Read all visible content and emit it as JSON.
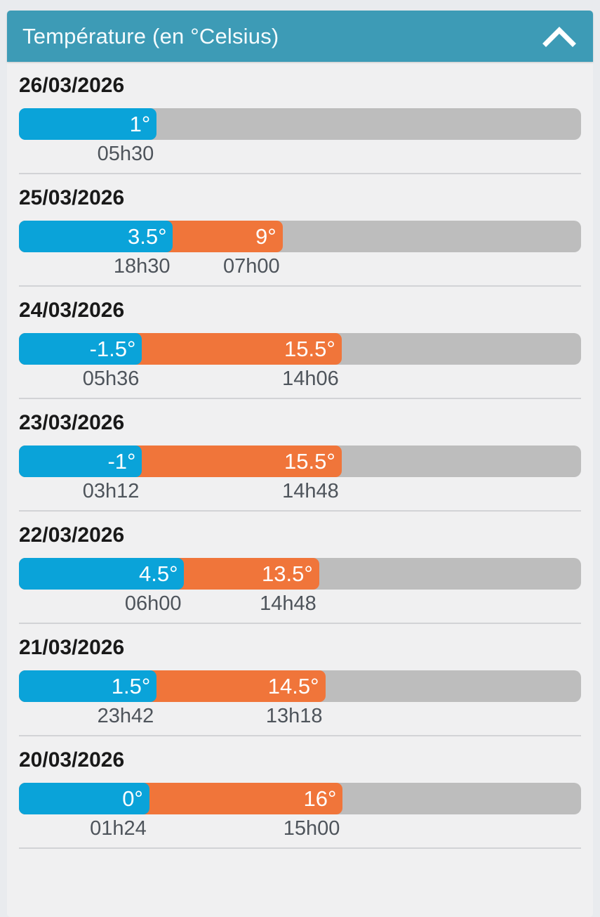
{
  "header": {
    "title": "Température (en °Celsius)",
    "collapse_icon": "chevron-up-icon"
  },
  "colors": {
    "page_background": "#e9ebee",
    "card_background": "#f0f0f1",
    "header_background": "#3d9bb6",
    "min_bar": "#0aa3d9",
    "max_bar": "#f0753a",
    "track": "#bdbdbd",
    "divider": "#d2d3d6"
  },
  "chart_data": {
    "type": "bar",
    "title": "Température (en °Celsius)",
    "unit": "°C",
    "orientation": "horizontal",
    "legend": {
      "min_color": "#0aa3d9",
      "max_color": "#f0753a"
    },
    "days": [
      {
        "date": "26/03/2026",
        "min": {
          "label": "1°",
          "value": 1,
          "time": "05h30",
          "end_pct": 24.5
        },
        "max": null
      },
      {
        "date": "25/03/2026",
        "min": {
          "label": "3.5°",
          "value": 3.5,
          "time": "18h30",
          "end_pct": 27.4
        },
        "max": {
          "label": "9°",
          "value": 9,
          "time": "07h00",
          "end_pct": 46.9
        }
      },
      {
        "date": "24/03/2026",
        "min": {
          "label": "-1.5°",
          "value": -1.5,
          "time": "05h36",
          "end_pct": 21.9
        },
        "max": {
          "label": "15.5°",
          "value": 15.5,
          "time": "14h06",
          "end_pct": 57.4
        }
      },
      {
        "date": "23/03/2026",
        "min": {
          "label": "-1°",
          "value": -1,
          "time": "03h12",
          "end_pct": 21.9
        },
        "max": {
          "label": "15.5°",
          "value": 15.5,
          "time": "14h48",
          "end_pct": 57.4
        }
      },
      {
        "date": "22/03/2026",
        "min": {
          "label": "4.5°",
          "value": 4.5,
          "time": "06h00",
          "end_pct": 29.4
        },
        "max": {
          "label": "13.5°",
          "value": 13.5,
          "time": "14h48",
          "end_pct": 53.4
        }
      },
      {
        "date": "21/03/2026",
        "min": {
          "label": "1.5°",
          "value": 1.5,
          "time": "23h42",
          "end_pct": 24.5
        },
        "max": {
          "label": "14.5°",
          "value": 14.5,
          "time": "13h18",
          "end_pct": 54.5
        }
      },
      {
        "date": "20/03/2026",
        "min": {
          "label": "0°",
          "value": 0,
          "time": "01h24",
          "end_pct": 23.2
        },
        "max": {
          "label": "16°",
          "value": 16,
          "time": "15h00",
          "end_pct": 57.6
        }
      }
    ]
  }
}
